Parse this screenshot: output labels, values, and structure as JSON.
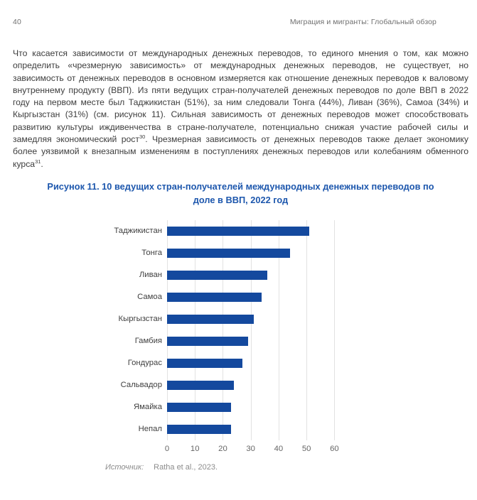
{
  "header": {
    "page_number": "40",
    "running_title": "Миграция и мигранты: Глобальный обзор"
  },
  "paragraph": {
    "parts": [
      {
        "text": "Что касается зависимости от международных денежных переводов, то единого мнения о том, как можно определить «чрезмерную зависимость» от международных денежных переводов, не существует, но зависимость от денежных переводов в основном измеряется как отношение денежных переводов к валовому внутреннему продукту (ВВП). Из пяти ведущих стран-получателей денежных переводов по доле ВВП в 2022 году на первом месте был Таджикистан (51%), за ним следовали Тонга (44%), Ливан (36%), Самоа (34%) и Кыргызстан (31%) (см. рисунок 11). Сильная зависимость от денежных переводов может способствовать развитию культуры иждивенчества в стране-получателе, потенциально снижая участие рабочей силы и замедляя экономический рост"
      },
      {
        "sup": "30"
      },
      {
        "text": ". Чрезмерная зависимость от денежных переводов также делает экономику более уязвимой к внезапным изменениям в поступлениях денежных переводов или колебаниям обменного курса"
      },
      {
        "sup": "31"
      },
      {
        "text": "."
      }
    ]
  },
  "figure": {
    "title_line1": "Рисунок 11. 10 ведущих стран-получателей международных денежных переводов по",
    "title_line2": "доле в ВВП, 2022 год",
    "source_label": "Источник:",
    "source_text": "Ratha et al., 2023."
  },
  "chart_data": {
    "type": "bar",
    "orientation": "horizontal",
    "title": "Рисунок 11. 10 ведущих стран-получателей международных денежных переводов по доле в ВВП, 2022 год",
    "categories": [
      "Таджикистан",
      "Тонга",
      "Ливан",
      "Самоа",
      "Кыргызстан",
      "Гамбия",
      "Гондурас",
      "Сальвадор",
      "Ямайка",
      "Непал"
    ],
    "values": [
      51,
      44,
      36,
      34,
      31,
      29,
      27,
      24,
      23,
      23
    ],
    "values_unit": "percent of GDP",
    "xlabel": "",
    "ylabel": "",
    "xlim": [
      0,
      65
    ],
    "xticks": [
      0,
      10,
      20,
      30,
      40,
      50,
      60
    ],
    "grid": "vertical",
    "legend": "none",
    "bar_color": "#14499e",
    "grid_color": "#e2e2e2"
  },
  "colors": {
    "title_blue": "#1d57ad",
    "body_text": "#3d3d3d",
    "header_text": "#707070",
    "source_text": "#8c8c8c",
    "bar_blue": "#14499e",
    "gridline": "#e2e2e2",
    "background": "#ffffff"
  }
}
